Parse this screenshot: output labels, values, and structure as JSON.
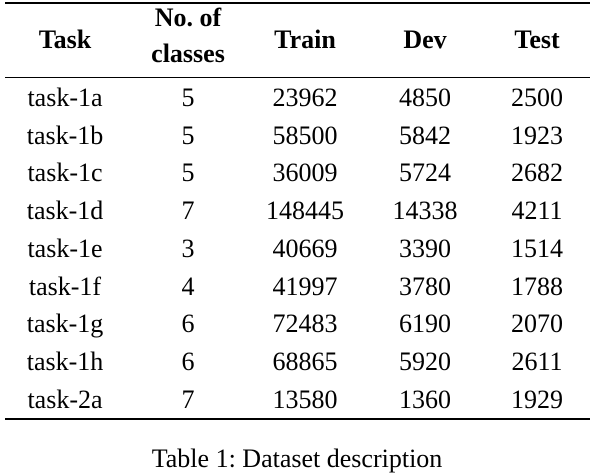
{
  "table": {
    "header": [
      "Task",
      "No. of classes",
      "Train",
      "Dev",
      "Test"
    ],
    "rows": [
      [
        "task-1a",
        5,
        23962,
        4850,
        2500
      ],
      [
        "task-1b",
        5,
        58500,
        5842,
        1923
      ],
      [
        "task-1c",
        5,
        36009,
        5724,
        2682
      ],
      [
        "task-1d",
        7,
        148445,
        14338,
        4211
      ],
      [
        "task-1e",
        3,
        40669,
        3390,
        1514
      ],
      [
        "task-1f",
        4,
        41997,
        3780,
        1788
      ],
      [
        "task-1g",
        6,
        72483,
        6190,
        2070
      ],
      [
        "task-1h",
        6,
        68865,
        5920,
        2611
      ],
      [
        "task-2a",
        7,
        13580,
        1360,
        1929
      ]
    ],
    "caption": "Table 1: Dataset description"
  }
}
